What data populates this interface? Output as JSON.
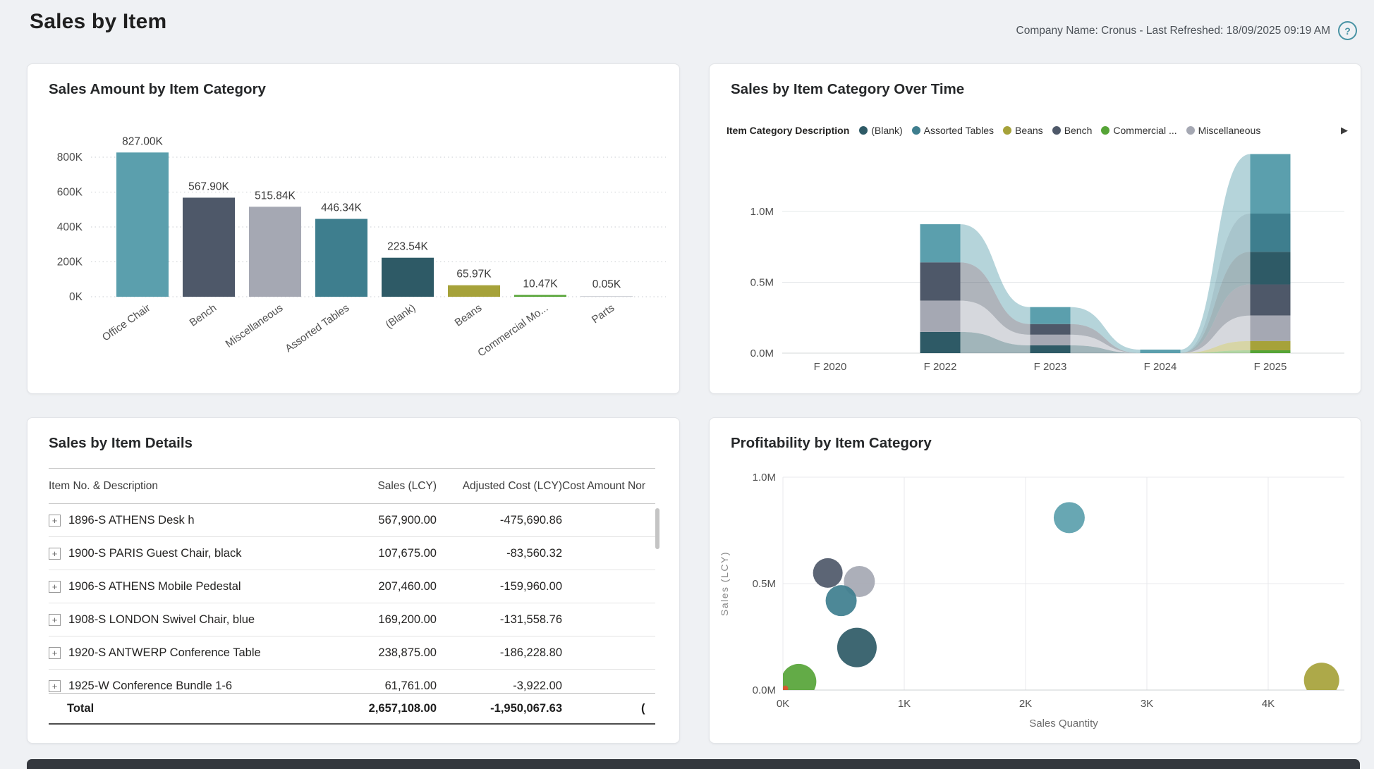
{
  "page": {
    "title": "Sales by Item",
    "meta": "Company Name: Cronus - Last Refreshed: 18/09/2025 09:19 AM"
  },
  "icons": {
    "help": "?",
    "expand_row": "+",
    "legend_more": "▶"
  },
  "palette": {
    "teal": "#5B9FAD",
    "tealMid": "#3E7E8E",
    "tealDark": "#2E5A66",
    "slate": "#4E5869",
    "gray": "#A5A8B3",
    "olive": "#A6A23A",
    "green": "#56A437",
    "red": "#E0532F"
  },
  "chart_data": [
    {
      "type": "bar",
      "title": "Sales Amount by Item Category",
      "categories": [
        "Office Chair",
        "Bench",
        "Miscellaneous",
        "Assorted Tables",
        "(Blank)",
        "Beans",
        "Commercial Mo...",
        "Parts"
      ],
      "values_k": [
        827.0,
        567.9,
        515.84,
        446.34,
        223.54,
        65.97,
        10.47,
        0.05
      ],
      "data_labels": [
        "827.00K",
        "567.90K",
        "515.84K",
        "446.34K",
        "223.54K",
        "65.97K",
        "10.47K",
        "0.05K"
      ],
      "bar_colors": [
        "teal",
        "slate",
        "gray",
        "tealMid",
        "tealDark",
        "olive",
        "green",
        "gray"
      ],
      "ylabel": "",
      "xlabel": "",
      "y_ticks": [
        "0K",
        "200K",
        "400K",
        "600K",
        "800K"
      ],
      "y_tick_values_k": [
        0,
        200,
        400,
        600,
        800
      ],
      "ylim_k": [
        0,
        800
      ],
      "grid": "dotted"
    },
    {
      "type": "area",
      "subtype": "ribbon",
      "title": "Sales by Item Category Over Time",
      "legend_title": "Item Category Description",
      "legend": [
        {
          "label": "(Blank)",
          "color": "tealDark"
        },
        {
          "label": "Assorted Tables",
          "color": "tealMid"
        },
        {
          "label": "Beans",
          "color": "olive"
        },
        {
          "label": "Bench",
          "color": "slate"
        },
        {
          "label": "Commercial ...",
          "color": "green"
        },
        {
          "label": "Miscellaneous",
          "color": "gray"
        }
      ],
      "legend_position": "top",
      "categories": [
        "F 2020",
        "F 2022",
        "F 2023",
        "F 2024",
        "F 2025"
      ],
      "series": [
        {
          "name": "Office Chair",
          "color": "teal",
          "values_m": [
            0,
            0.27,
            0.12,
            0.025,
            0.42
          ]
        },
        {
          "name": "Assorted Tables",
          "color": "tealMid",
          "values_m": [
            0,
            0,
            0,
            0,
            0.27
          ]
        },
        {
          "name": "(Blank)",
          "color": "tealDark",
          "values_m": [
            0,
            0.15,
            0.055,
            0,
            0.23
          ]
        },
        {
          "name": "Bench",
          "color": "slate",
          "values_m": [
            0,
            0.27,
            0.075,
            0,
            0.22
          ]
        },
        {
          "name": "Miscellaneous",
          "color": "gray",
          "values_m": [
            0,
            0.22,
            0.075,
            0,
            0.18
          ]
        },
        {
          "name": "Beans",
          "color": "olive",
          "values_m": [
            0,
            0,
            0,
            0,
            0.065
          ]
        },
        {
          "name": "Commercial ...",
          "color": "green",
          "values_m": [
            0,
            0,
            0,
            0,
            0.02
          ]
        }
      ],
      "y_ticks": [
        "0.0M",
        "0.5M",
        "1.0M"
      ],
      "y_tick_values_m": [
        0,
        0.5,
        1.0
      ],
      "ylim_m": [
        0,
        1.41
      ],
      "grid": "solid"
    },
    {
      "type": "table",
      "title": "Sales by Item Details",
      "columns": [
        {
          "label": "Item No. & Description",
          "align": "left"
        },
        {
          "label": "Sales (LCY)",
          "align": "right"
        },
        {
          "label": "Adjusted Cost (LCY)",
          "align": "right"
        },
        {
          "label": "Cost Amount Nor",
          "align": "left",
          "clipped": true
        }
      ],
      "rows": [
        {
          "item": "1896-S ATHENS Desk h",
          "sales": "567,900.00",
          "adjusted_cost": "-475,690.86"
        },
        {
          "item": "1900-S PARIS Guest Chair, black",
          "sales": "107,675.00",
          "adjusted_cost": "-83,560.32"
        },
        {
          "item": "1906-S ATHENS Mobile Pedestal",
          "sales": "207,460.00",
          "adjusted_cost": "-159,960.00"
        },
        {
          "item": "1908-S LONDON Swivel Chair, blue",
          "sales": "169,200.00",
          "adjusted_cost": "-131,558.76"
        },
        {
          "item": "1920-S ANTWERP Conference Table",
          "sales": "238,875.00",
          "adjusted_cost": "-186,228.80"
        },
        {
          "item": "1925-W Conference Bundle 1-6",
          "sales": "61,761.00",
          "adjusted_cost": "-3,922.00"
        }
      ],
      "total": {
        "label": "Total",
        "sales": "2,657,108.00",
        "adjusted_cost": "-1,950,067.63",
        "cost_amount": "("
      }
    },
    {
      "type": "scatter",
      "title": "Profitability by Item Category",
      "xlabel": "Sales Quantity",
      "ylabel": "Sales (LCY)",
      "x_ticks": [
        "0K",
        "1K",
        "2K",
        "3K",
        "4K"
      ],
      "x_tick_values_k": [
        0,
        1,
        2,
        3,
        4
      ],
      "y_ticks": [
        "0.0M",
        "0.5M",
        "1.0M"
      ],
      "y_tick_values_m": [
        0,
        0.5,
        1.0
      ],
      "xlim_k": [
        0,
        4.63
      ],
      "ylim_m": [
        0,
        1.0
      ],
      "grid": "solid",
      "points": [
        {
          "name": "Bench",
          "x_k": 0.37,
          "y_m": 0.55,
          "r": 21,
          "color": "slate"
        },
        {
          "name": "Miscellaneous",
          "x_k": 0.63,
          "y_m": 0.51,
          "r": 22,
          "color": "gray"
        },
        {
          "name": "Assorted Tables",
          "x_k": 0.48,
          "y_m": 0.42,
          "r": 22,
          "color": "tealMid"
        },
        {
          "name": "Office Chair",
          "x_k": 2.36,
          "y_m": 0.81,
          "r": 22,
          "color": "teal"
        },
        {
          "name": "(Blank)",
          "x_k": 0.61,
          "y_m": 0.2,
          "r": 28,
          "color": "tealDark"
        },
        {
          "name": "Commercial ...",
          "x_k": 0.13,
          "y_m": 0.04,
          "r": 25,
          "color": "green"
        },
        {
          "name": "Beans",
          "x_k": 4.44,
          "y_m": 0.046,
          "r": 25,
          "color": "olive"
        },
        {
          "name": "Parts",
          "x_k": 0.02,
          "y_m": 0.008,
          "r": 4,
          "color": "red"
        }
      ]
    }
  ]
}
